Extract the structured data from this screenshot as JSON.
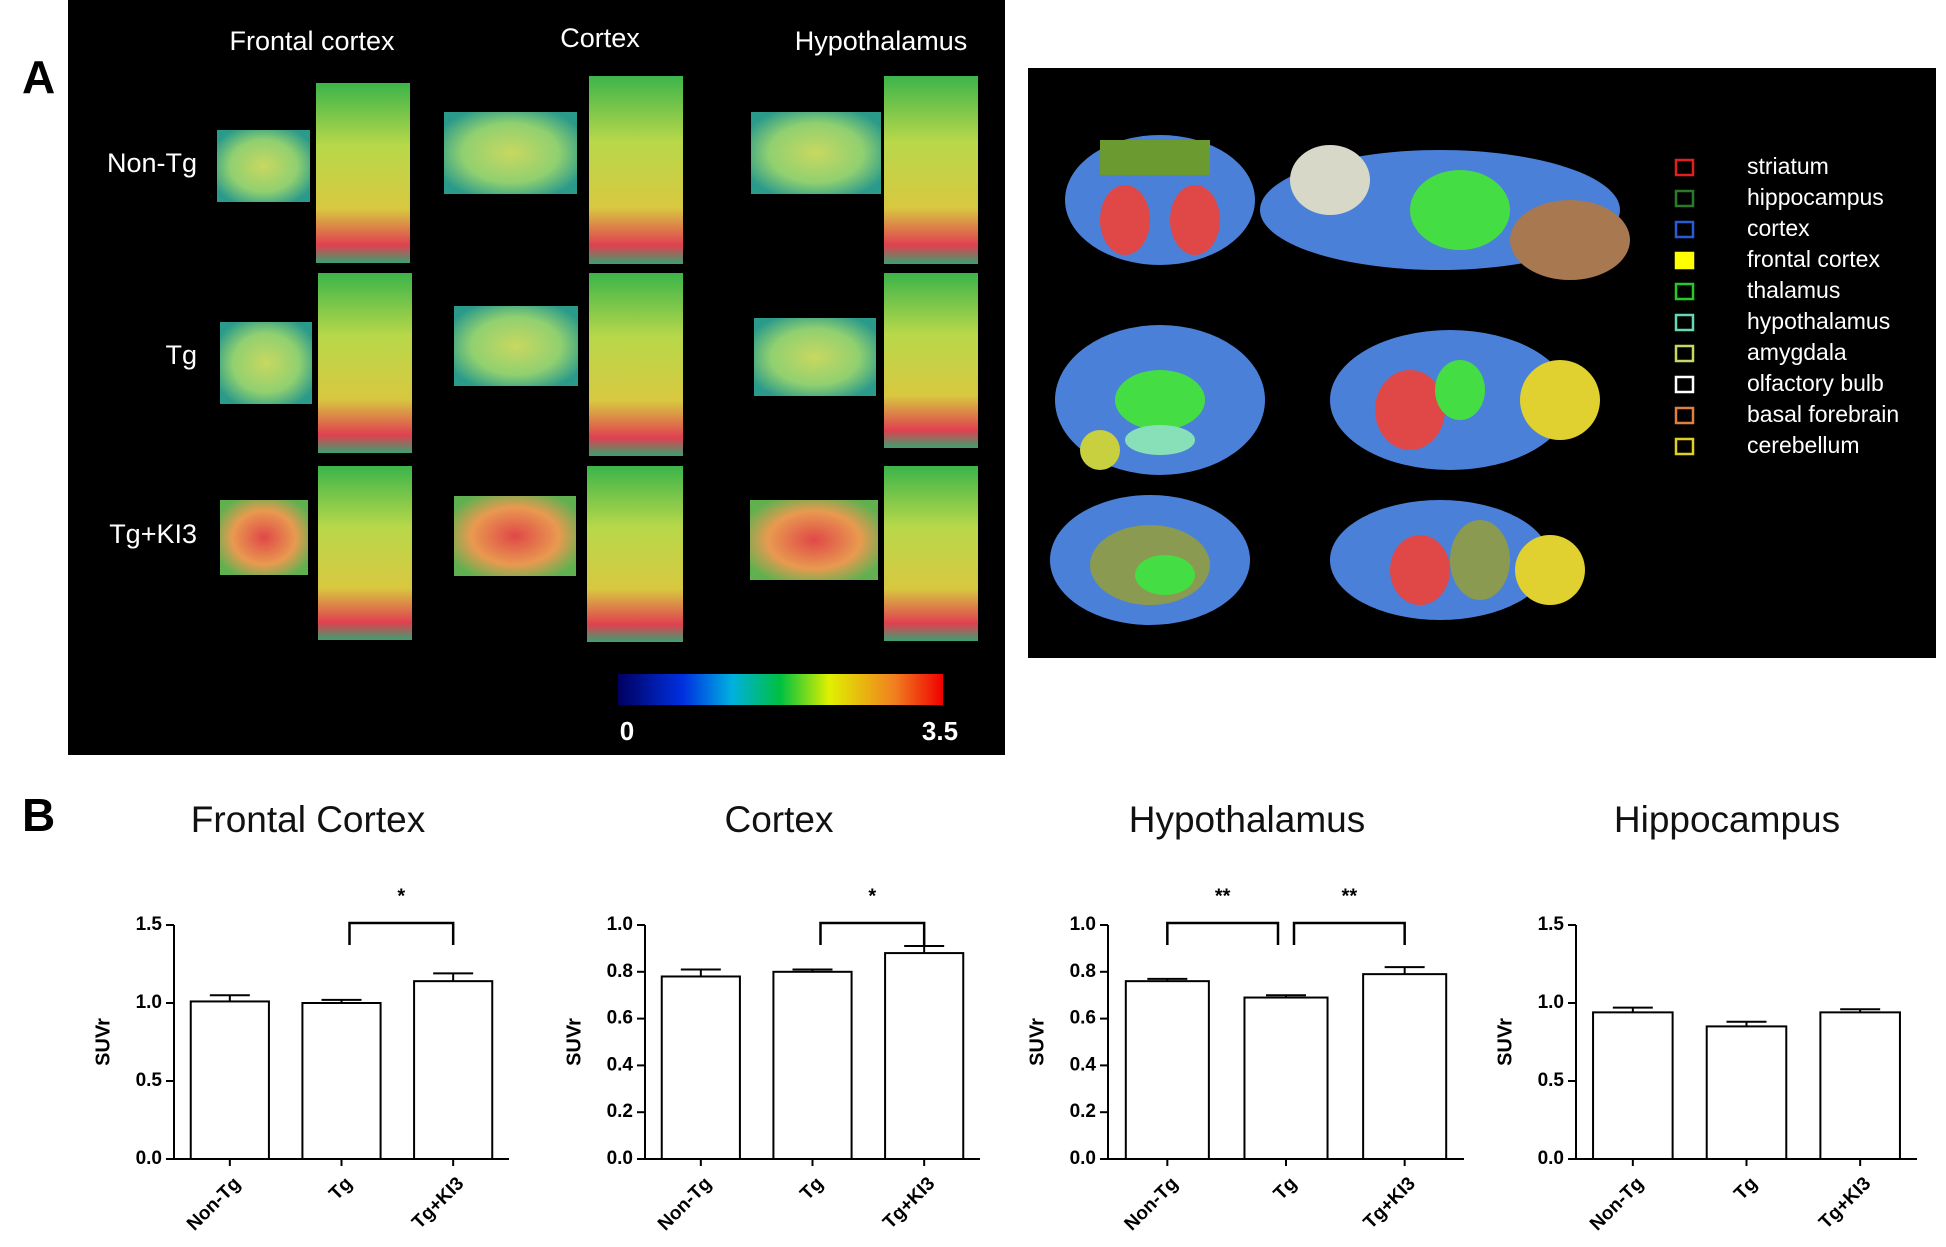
{
  "panel_a": {
    "letter": "A",
    "regions": [
      "Frontal cortex",
      "Cortex",
      "Hypothalamus"
    ],
    "groups": [
      "Non-Tg",
      "Tg",
      "Tg+KI3"
    ],
    "colorbar": {
      "range": [
        0,
        3.5
      ]
    },
    "legend": [
      {
        "name": "striatum",
        "color": "#e02020"
      },
      {
        "name": "hippocampus",
        "color": "#2a7a2a"
      },
      {
        "name": "cortex",
        "color": "#2a5bd7"
      },
      {
        "name": "frontal cortex",
        "color": "#ffff00"
      },
      {
        "name": "thalamus",
        "color": "#22cc22"
      },
      {
        "name": "hypothalamus",
        "color": "#66d9b0"
      },
      {
        "name": "amygdala",
        "color": "#c8d860"
      },
      {
        "name": "olfactory bulb",
        "color": "#ffffff"
      },
      {
        "name": "basal forebrain",
        "color": "#e08040"
      },
      {
        "name": "cerebellum",
        "color": "#e0d020"
      }
    ]
  },
  "panel_b": {
    "letter": "B"
  },
  "chart_data": [
    {
      "type": "bar",
      "title": "Frontal Cortex",
      "y_label": "SUVr",
      "categories": [
        "Non-Tg",
        "Tg",
        "Tg+KI3"
      ],
      "values": [
        1.01,
        1.0,
        1.14
      ],
      "errors": [
        0.04,
        0.02,
        0.05
      ],
      "ylim": [
        0,
        1.5
      ],
      "yticks": [
        {
          "value": 0,
          "label": "0.0"
        },
        0.5,
        {
          "value": 1,
          "label": "1.0"
        },
        1.5
      ],
      "brackets": [
        {
          "between": [
            1,
            2
          ],
          "label": "*"
        }
      ]
    },
    {
      "type": "bar",
      "title": "Cortex",
      "y_label": "SUVr",
      "categories": [
        "Non-Tg",
        "Tg",
        "Tg+KI3"
      ],
      "values": [
        0.78,
        0.8,
        0.88
      ],
      "errors": [
        0.03,
        0.01,
        0.03
      ],
      "ylim": [
        0,
        1.0
      ],
      "yticks": [
        {
          "value": 0,
          "label": "0.0"
        },
        0.2,
        0.4,
        0.6,
        0.8,
        {
          "value": 1,
          "label": "1.0"
        }
      ],
      "brackets": [
        {
          "between": [
            1,
            2
          ],
          "label": "*"
        }
      ]
    },
    {
      "type": "bar",
      "title": "Hypothalamus",
      "y_label": "SUVr",
      "categories": [
        "Non-Tg",
        "Tg",
        "Tg+KI3"
      ],
      "values": [
        0.76,
        0.69,
        0.79
      ],
      "errors": [
        0.01,
        0.01,
        0.03
      ],
      "ylim": [
        0,
        1.0
      ],
      "yticks": [
        {
          "value": 0,
          "label": "0.0"
        },
        0.2,
        0.4,
        0.6,
        0.8,
        {
          "value": 1,
          "label": "1.0"
        }
      ],
      "brackets": [
        {
          "between": [
            0,
            1
          ],
          "label": "**"
        },
        {
          "between": [
            1,
            2
          ],
          "label": "**"
        }
      ]
    },
    {
      "type": "bar",
      "title": "Hippocampus",
      "y_label": "SUVr",
      "categories": [
        "Non-Tg",
        "Tg",
        "Tg+KI3"
      ],
      "values": [
        0.94,
        0.85,
        0.94
      ],
      "errors": [
        0.03,
        0.03,
        0.02
      ],
      "ylim": [
        0,
        1.5
      ],
      "yticks": [
        {
          "value": 0,
          "label": "0.0"
        },
        0.5,
        {
          "value": 1,
          "label": "1.0"
        },
        1.5
      ],
      "brackets": []
    }
  ]
}
